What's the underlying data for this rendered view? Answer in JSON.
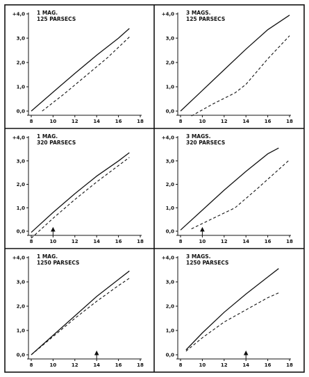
{
  "chart_data": [
    {
      "type": "line",
      "label_lines": [
        "1 MAG.",
        "125 PARSECS"
      ],
      "xticks": [
        "8",
        "10",
        "12",
        "14",
        "16",
        "18"
      ],
      "yticks": [
        "0,0",
        "1,0",
        "2,0",
        "3,0",
        "+4,0"
      ],
      "xlim": [
        8,
        18
      ],
      "ylim": [
        0,
        4
      ],
      "marker_x": null,
      "series": [
        {
          "style": "solid",
          "x": [
            8,
            10,
            12,
            14,
            16,
            17
          ],
          "y": [
            0.0,
            0.78,
            1.55,
            2.3,
            3.0,
            3.4
          ]
        },
        {
          "style": "dashed",
          "x": [
            9,
            11,
            13,
            15,
            17
          ],
          "y": [
            0.0,
            0.7,
            1.45,
            2.2,
            3.05
          ]
        }
      ]
    },
    {
      "type": "line",
      "label_lines": [
        "3 MAGS.",
        "125 PARSECS"
      ],
      "xticks": [
        "8",
        "10",
        "12",
        "14",
        "16",
        "18"
      ],
      "yticks": [
        "0,0",
        "1,0",
        "2,0",
        "3,0",
        "+4,0"
      ],
      "xlim": [
        8,
        18
      ],
      "ylim": [
        0,
        4
      ],
      "marker_x": null,
      "series": [
        {
          "style": "solid",
          "x": [
            8,
            10,
            12,
            14,
            16,
            18
          ],
          "y": [
            0.0,
            0.85,
            1.7,
            2.55,
            3.35,
            3.95
          ]
        },
        {
          "style": "dashed",
          "x": [
            9,
            11,
            13,
            14,
            16,
            18
          ],
          "y": [
            -0.2,
            0.3,
            0.75,
            1.1,
            2.15,
            3.1
          ]
        }
      ]
    },
    {
      "type": "line",
      "label_lines": [
        "1 MAG.",
        "320 PARSECS"
      ],
      "xticks": [
        "8",
        "10",
        "12",
        "14",
        "16",
        "18"
      ],
      "yticks": [
        "0,0",
        "1,0",
        "2,0",
        "3,0",
        "+4,0"
      ],
      "xlim": [
        8,
        18
      ],
      "ylim": [
        0,
        4
      ],
      "marker_x": 10,
      "series": [
        {
          "style": "solid",
          "x": [
            8,
            10,
            12,
            14,
            16,
            17
          ],
          "y": [
            -0.05,
            0.8,
            1.6,
            2.35,
            3.0,
            3.35
          ]
        },
        {
          "style": "dashed",
          "x": [
            8,
            10,
            12,
            14,
            16,
            17
          ],
          "y": [
            -0.3,
            0.55,
            1.35,
            2.1,
            2.8,
            3.15
          ]
        }
      ]
    },
    {
      "type": "line",
      "label_lines": [
        "3 MAGS.",
        "320 PARSECS"
      ],
      "xticks": [
        "8",
        "10",
        "12",
        "14",
        "16",
        "18"
      ],
      "yticks": [
        "0,0",
        "1,0",
        "2,0",
        "3,0",
        "+4,0"
      ],
      "xlim": [
        8,
        18
      ],
      "ylim": [
        0,
        4
      ],
      "marker_x": 10,
      "series": [
        {
          "style": "solid",
          "x": [
            8,
            10,
            12,
            14,
            16,
            17
          ],
          "y": [
            0.05,
            0.9,
            1.75,
            2.55,
            3.3,
            3.55
          ]
        },
        {
          "style": "dashed",
          "x": [
            9,
            11,
            13,
            15,
            18
          ],
          "y": [
            0.1,
            0.55,
            1.0,
            1.8,
            3.05
          ]
        }
      ]
    },
    {
      "type": "line",
      "label_lines": [
        "1 MAG.",
        "1250 PARSECS"
      ],
      "xticks": [
        "8",
        "10",
        "12",
        "14",
        "16",
        "18"
      ],
      "yticks": [
        "0,0",
        "1,0",
        "2,0",
        "3,0",
        "+4,0"
      ],
      "xlim": [
        8,
        18
      ],
      "ylim": [
        0,
        4
      ],
      "marker_x": 14,
      "series": [
        {
          "style": "solid",
          "x": [
            8,
            10,
            12,
            14,
            16,
            17
          ],
          "y": [
            0.0,
            0.8,
            1.6,
            2.4,
            3.1,
            3.45
          ]
        },
        {
          "style": "dashed",
          "x": [
            8,
            10,
            12,
            14,
            16,
            17
          ],
          "y": [
            0.0,
            0.75,
            1.5,
            2.2,
            2.85,
            3.15
          ]
        }
      ]
    },
    {
      "type": "line",
      "label_lines": [
        "3 MAGS.",
        "1250 PARSECS"
      ],
      "xticks": [
        "8",
        "10",
        "12",
        "14",
        "16",
        "18"
      ],
      "yticks": [
        "0,0",
        "1,0",
        "2,0",
        "3,0",
        "+4,0"
      ],
      "xlim": [
        8,
        18
      ],
      "ylim": [
        0,
        4
      ],
      "marker_x": 14,
      "series": [
        {
          "style": "solid",
          "x": [
            8.5,
            10,
            12,
            14,
            16,
            17
          ],
          "y": [
            0.2,
            0.9,
            1.75,
            2.5,
            3.2,
            3.55
          ]
        },
        {
          "style": "dashed",
          "x": [
            8.5,
            10,
            12,
            14,
            16,
            17
          ],
          "y": [
            0.15,
            0.7,
            1.35,
            1.85,
            2.35,
            2.55
          ]
        }
      ]
    }
  ]
}
